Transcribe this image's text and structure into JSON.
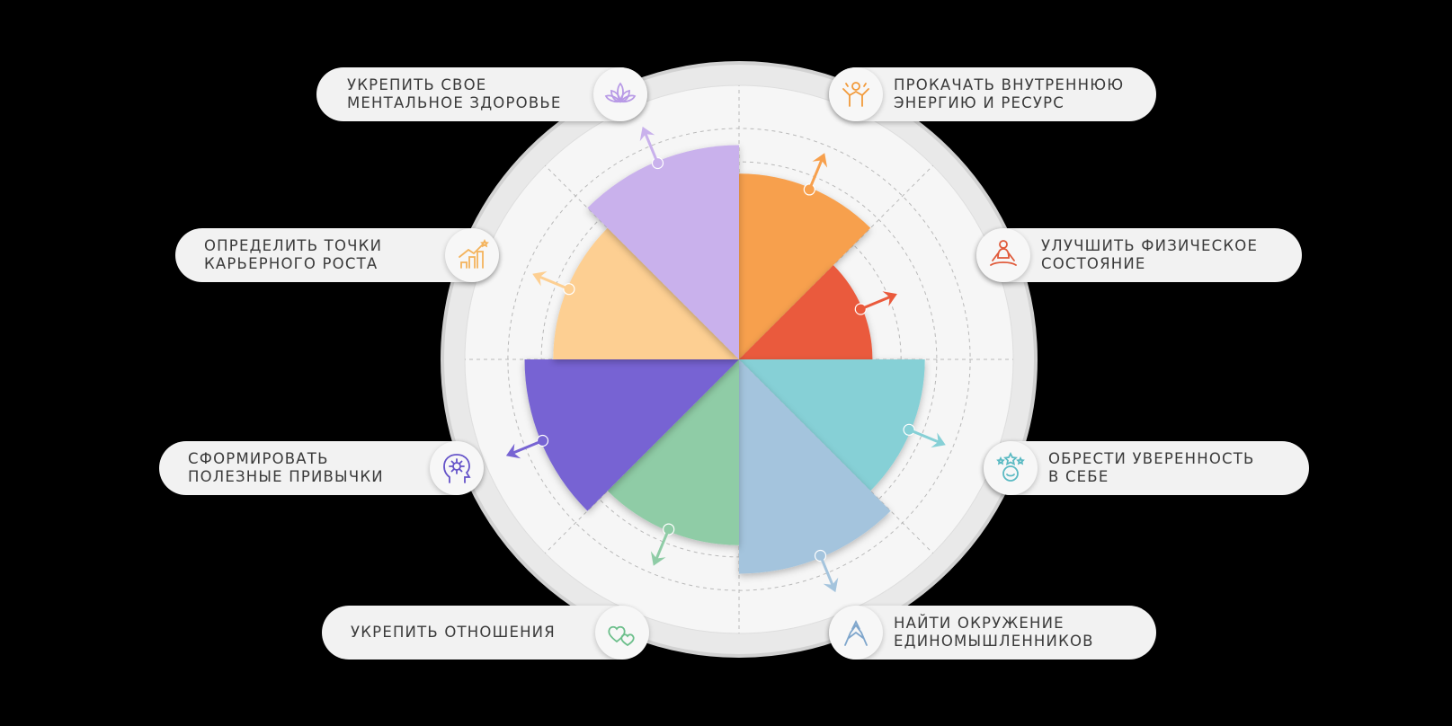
{
  "center_label_hidden": "",
  "segments": [
    {
      "key": "energy",
      "label": "ПРОКАЧАТЬ ВНУТРЕННЮЮ\nЭНЕРГИЮ И РЕСУРС",
      "color": "#f7a04d",
      "level": 0.78,
      "icon": "energy-person-icon"
    },
    {
      "key": "physical",
      "label": "УЛУЧШИТЬ ФИЗИЧЕСКОЕ\nСОСТОЯНИЕ",
      "color": "#ea5a3c",
      "level": 0.56,
      "icon": "meditation-icon"
    },
    {
      "key": "confidence",
      "label": "ОБРЕСТИ УВЕРЕННОСТЬ\nВ СЕБЕ",
      "color": "#86d0d6",
      "level": 0.78,
      "icon": "confidence-stars-icon"
    },
    {
      "key": "community",
      "label": "НАЙТИ ОКРУЖЕНИЕ\nЕДИНОМЫШЛЕННИКОВ",
      "color": "#a4c4dd",
      "level": 0.9,
      "icon": "hands-together-icon"
    },
    {
      "key": "relations",
      "label": "УКРЕПИТЬ ОТНОШЕНИЯ",
      "color": "#8fcca6",
      "level": 0.78,
      "icon": "hearts-icon"
    },
    {
      "key": "habits",
      "label": "СФОРМИРОВАТЬ\nПОЛЕЗНЫЕ ПРИВЫЧКИ",
      "color": "#7764d3",
      "level": 0.9,
      "icon": "head-gear-icon"
    },
    {
      "key": "career",
      "label": "ОПРЕДЕЛИТЬ ТОЧКИ\nКАРЬЕРНОГО РОСТА",
      "color": "#fdcf92",
      "level": 0.78,
      "icon": "career-growth-icon"
    },
    {
      "key": "mental",
      "label": "УКРЕПИТЬ СВОЕ\nМЕНТАЛЬНОЕ ЗДОРОВЬЕ",
      "color": "#c9b1ec",
      "level": 0.9,
      "icon": "lotus-icon"
    }
  ],
  "colors": {
    "background": "#000000",
    "ring": "#eeeeee",
    "pill": "#f2f2f2",
    "text": "#3a3a3a"
  }
}
